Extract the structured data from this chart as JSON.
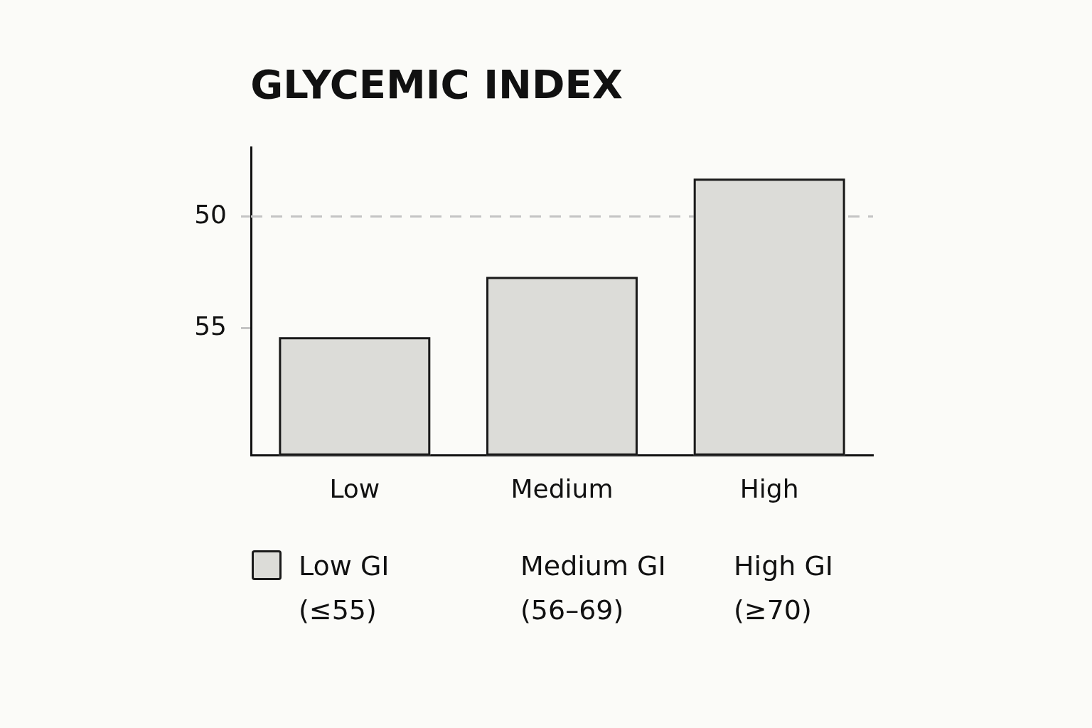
{
  "chart_data": {
    "type": "bar",
    "title": "GLYCEMIC INDEX",
    "categories": [
      "Low",
      "Medium",
      "High"
    ],
    "base": [
      60.7,
      60.7,
      60.7
    ],
    "values": [
      -5.3,
      -8.0,
      -12.4
    ],
    "color": "#dcdcd8",
    "ylim": [
      60.7,
      46.9
    ],
    "yticks": [
      50,
      55
    ],
    "ref_lines": [
      {
        "axis": "y",
        "value": 50,
        "color": "#c4c4c4",
        "line_style": "dashed"
      }
    ],
    "annotations": [
      "Low GI\n(≤55)",
      "Medium GI\n(56–69)",
      "High GI\n(≥70)"
    ]
  }
}
